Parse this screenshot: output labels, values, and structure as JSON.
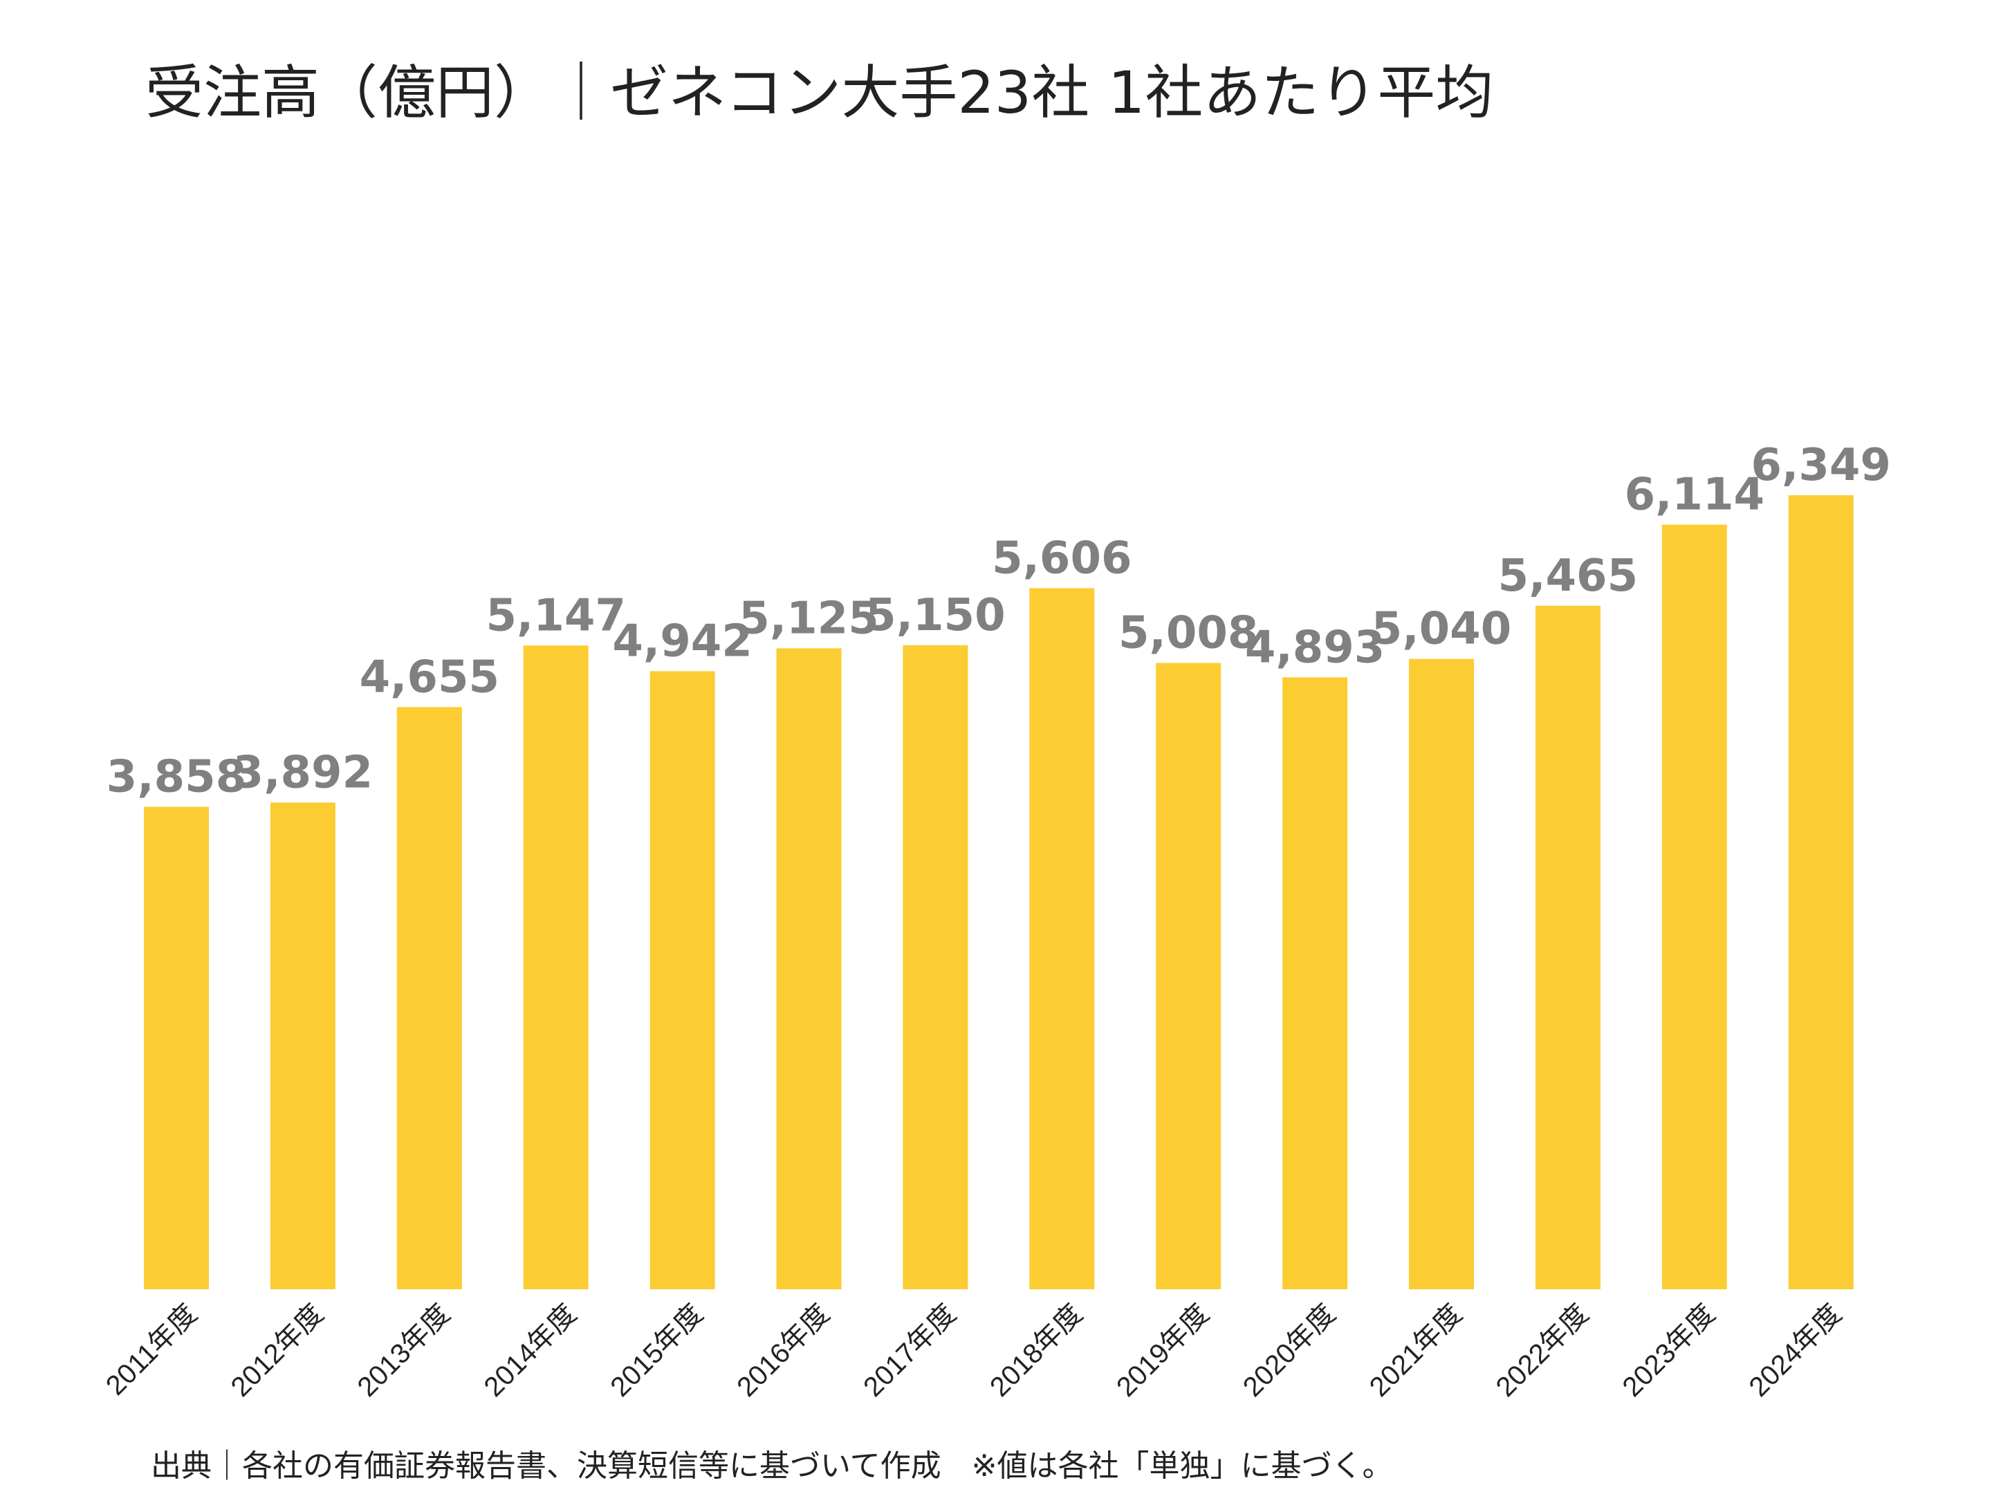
{
  "chart_data": {
    "type": "bar",
    "title": "受注高（億円）｜ゼネコン大手23社 1社あたり平均",
    "categories": [
      "2011年度",
      "2012年度",
      "2013年度",
      "2014年度",
      "2015年度",
      "2016年度",
      "2017年度",
      "2018年度",
      "2019年度",
      "2020年度",
      "2021年度",
      "2022年度",
      "2023年度",
      "2024年度"
    ],
    "values": [
      3858,
      3892,
      4655,
      5147,
      4942,
      5125,
      5150,
      5606,
      5008,
      4893,
      5040,
      5465,
      6114,
      6349
    ],
    "value_labels": [
      "3,858",
      "3,892",
      "4,655",
      "5,147",
      "4,942",
      "5,125",
      "5,150",
      "5,606",
      "5,008",
      "4,893",
      "5,040",
      "5,465",
      "6,114",
      "6,349"
    ],
    "xlabel": "",
    "ylabel": "",
    "ylim": [
      0,
      6349
    ],
    "grid": false,
    "legend": "none",
    "bar_color": "#FCCC33",
    "label_color": "#808080",
    "tick_color": "#222222",
    "source": "出典｜各社の有価証券報告書、決算短信等に基づいて作成　※値は各社「単独」に基づく。"
  }
}
